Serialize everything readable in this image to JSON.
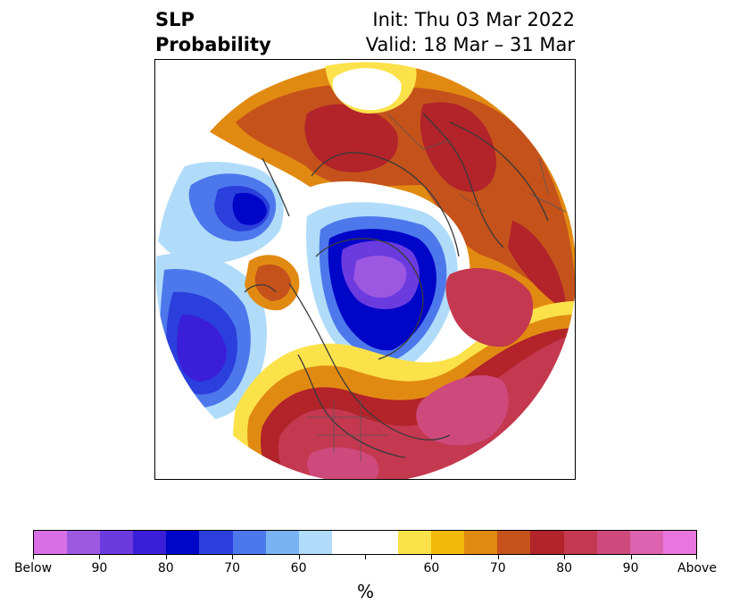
{
  "title": {
    "left_line1": "SLP",
    "left_line2": "Probability",
    "right_line1": "Init: Thu 03 Mar 2022",
    "right_line2": "Valid: 18 Mar – 31 Mar"
  },
  "colorbar": {
    "colors": [
      "#d86fe6",
      "#9c58e0",
      "#6b3be0",
      "#3a1ed8",
      "#0006c8",
      "#2b3fdc",
      "#4d78ec",
      "#7ab3f4",
      "#b0dcfa",
      "#ffffff",
      "#ffffff",
      "#fce24a",
      "#f4b80a",
      "#e18a12",
      "#c5521b",
      "#b2232a",
      "#c43850",
      "#cf4a7c",
      "#dd62b0",
      "#e876de"
    ],
    "tick_labels": [
      "Below",
      "90",
      "80",
      "70",
      "60",
      "",
      "60",
      "70",
      "80",
      "90",
      "Above"
    ],
    "unit": "%"
  },
  "map": {
    "projection": "north-polar-stereographic",
    "variable": "sea-level-pressure",
    "low_anomaly_color": "#0006c8",
    "high_anomaly_color": "#c43850",
    "coastline_color": "#3a3a3a"
  }
}
